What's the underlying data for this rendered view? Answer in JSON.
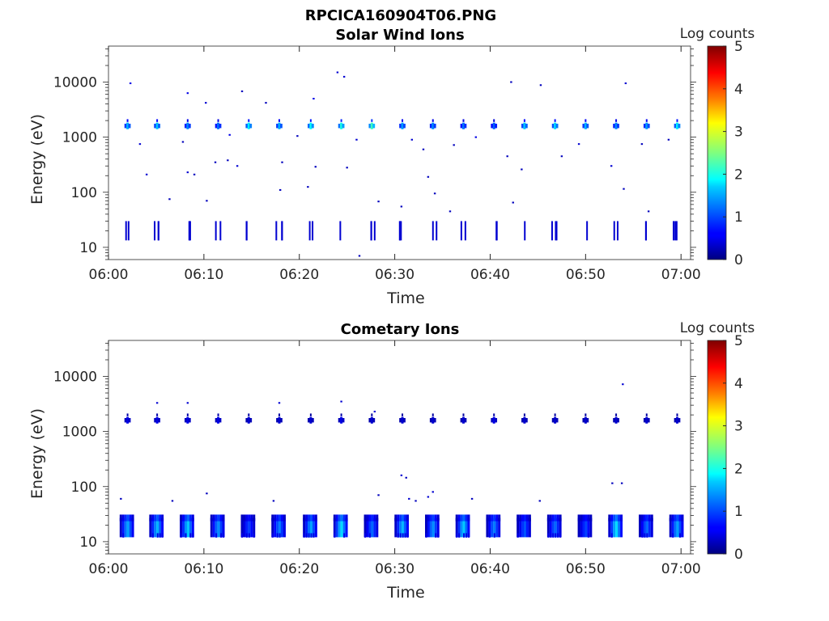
{
  "figure_title": "RPCICA160904T06.PNG",
  "colors": {
    "colormap": "jet",
    "axis": "#262626",
    "background": "#ffffff"
  },
  "chart_data": [
    {
      "type": "heatmap",
      "title": "Solar Wind Ions",
      "xlabel": "Time",
      "ylabel": "Energy (eV)",
      "x_ticks": [
        "06:00",
        "06:10",
        "06:20",
        "06:30",
        "06:40",
        "06:50",
        "07:00"
      ],
      "x_range_minutes": [
        0,
        61
      ],
      "y_ticks": [
        10,
        100,
        1000,
        10000
      ],
      "y_tick_labels": [
        "10",
        "100",
        "1000",
        "10000"
      ],
      "ylim": [
        6,
        45000
      ],
      "y_scale": "log",
      "colorbar": {
        "title": "Log counts",
        "ticks": [
          "0",
          "1",
          "2",
          "3",
          "4",
          "5"
        ],
        "range": [
          0,
          5
        ]
      },
      "scans_minutes": [
        2.0,
        5.1,
        8.3,
        11.5,
        14.7,
        17.9,
        21.2,
        24.4,
        27.6,
        30.8,
        34.0,
        37.2,
        40.4,
        43.6,
        46.8,
        50.0,
        53.2,
        56.4,
        59.6
      ],
      "peak_energy_eV": 1600,
      "peak_log_counts": [
        1.5,
        1.6,
        1.3,
        1.2,
        1.8,
        1.5,
        1.9,
        2.0,
        2.2,
        1.4,
        1.3,
        1.2,
        1.1,
        1.6,
        1.7,
        1.5,
        1.3,
        1.4,
        1.8
      ],
      "low_energy_hits": {
        "energy_eV": [
          13,
          30
        ],
        "log_counts": 0.4
      },
      "scatter_points": [
        {
          "t": 2.3,
          "e": 9500,
          "c": 0.5
        },
        {
          "t": 14.0,
          "e": 6800,
          "c": 0.3
        },
        {
          "t": 24.0,
          "e": 15000,
          "c": 0.4
        },
        {
          "t": 24.7,
          "e": 12500,
          "c": 0.4
        },
        {
          "t": 42.2,
          "e": 10000,
          "c": 0.3
        },
        {
          "t": 45.3,
          "e": 8800,
          "c": 0.3
        },
        {
          "t": 54.2,
          "e": 9500,
          "c": 0.4
        },
        {
          "t": 8.3,
          "e": 6300,
          "c": 0.5
        },
        {
          "t": 10.2,
          "e": 4200,
          "c": 0.4
        },
        {
          "t": 16.5,
          "e": 4200,
          "c": 0.3
        },
        {
          "t": 21.5,
          "e": 5000,
          "c": 0.5
        },
        {
          "t": 3.3,
          "e": 750,
          "c": 0.4
        },
        {
          "t": 7.8,
          "e": 820,
          "c": 0.3
        },
        {
          "t": 12.7,
          "e": 1100,
          "c": 0.5
        },
        {
          "t": 19.8,
          "e": 1050,
          "c": 0.3
        },
        {
          "t": 26.0,
          "e": 900,
          "c": 0.4
        },
        {
          "t": 31.8,
          "e": 900,
          "c": 0.4
        },
        {
          "t": 33.0,
          "e": 600,
          "c": 0.3
        },
        {
          "t": 36.2,
          "e": 720,
          "c": 0.3
        },
        {
          "t": 38.5,
          "e": 1000,
          "c": 0.5
        },
        {
          "t": 41.8,
          "e": 450,
          "c": 0.3
        },
        {
          "t": 47.5,
          "e": 450,
          "c": 0.3
        },
        {
          "t": 49.3,
          "e": 750,
          "c": 0.4
        },
        {
          "t": 55.9,
          "e": 750,
          "c": 0.3
        },
        {
          "t": 58.7,
          "e": 900,
          "c": 0.3
        },
        {
          "t": 4.0,
          "e": 210,
          "c": 0.4
        },
        {
          "t": 8.3,
          "e": 230,
          "c": 0.4
        },
        {
          "t": 9.0,
          "e": 210,
          "c": 0.3
        },
        {
          "t": 11.2,
          "e": 350,
          "c": 0.3
        },
        {
          "t": 12.5,
          "e": 380,
          "c": 0.3
        },
        {
          "t": 13.5,
          "e": 300,
          "c": 0.4
        },
        {
          "t": 18.2,
          "e": 350,
          "c": 0.3
        },
        {
          "t": 21.7,
          "e": 290,
          "c": 0.3
        },
        {
          "t": 25.0,
          "e": 280,
          "c": 0.3
        },
        {
          "t": 33.5,
          "e": 190,
          "c": 0.3
        },
        {
          "t": 43.3,
          "e": 260,
          "c": 0.3
        },
        {
          "t": 52.7,
          "e": 300,
          "c": 0.4
        },
        {
          "t": 6.4,
          "e": 75,
          "c": 0.3
        },
        {
          "t": 10.3,
          "e": 70,
          "c": 0.3
        },
        {
          "t": 18.0,
          "e": 110,
          "c": 0.3
        },
        {
          "t": 20.9,
          "e": 125,
          "c": 0.3
        },
        {
          "t": 28.3,
          "e": 68,
          "c": 0.3
        },
        {
          "t": 30.7,
          "e": 55,
          "c": 0.3
        },
        {
          "t": 34.2,
          "e": 95,
          "c": 0.3
        },
        {
          "t": 35.8,
          "e": 45,
          "c": 0.3
        },
        {
          "t": 42.4,
          "e": 65,
          "c": 0.3
        },
        {
          "t": 54.0,
          "e": 115,
          "c": 0.3
        },
        {
          "t": 56.6,
          "e": 45,
          "c": 0.3
        },
        {
          "t": 26.3,
          "e": 7,
          "c": 0.3
        }
      ]
    },
    {
      "type": "heatmap",
      "title": "Cometary Ions",
      "xlabel": "Time",
      "ylabel": "Energy (eV)",
      "x_ticks": [
        "06:00",
        "06:10",
        "06:20",
        "06:30",
        "06:40",
        "06:50",
        "07:00"
      ],
      "x_range_minutes": [
        0,
        61
      ],
      "y_ticks": [
        10,
        100,
        1000,
        10000
      ],
      "y_tick_labels": [
        "10",
        "100",
        "1000",
        "10000"
      ],
      "ylim": [
        6,
        45000
      ],
      "y_scale": "log",
      "colorbar": {
        "title": "Log counts",
        "ticks": [
          "0",
          "1",
          "2",
          "3",
          "4",
          "5"
        ],
        "range": [
          0,
          5
        ]
      },
      "scans_minutes": [
        2.0,
        5.1,
        8.3,
        11.5,
        14.7,
        17.9,
        21.2,
        24.4,
        27.6,
        30.8,
        34.0,
        37.2,
        40.4,
        43.6,
        46.8,
        50.0,
        53.2,
        56.4,
        59.6
      ],
      "peak_energy_eV": 1600,
      "peak_log_counts": [
        0.5,
        0.5,
        0.5,
        0.5,
        0.4,
        0.4,
        0.4,
        0.5,
        0.4,
        0.4,
        0.4,
        0.4,
        0.5,
        0.4,
        0.4,
        0.4,
        0.4,
        0.4,
        0.4
      ],
      "low_energy_band": {
        "energy_eV": [
          14,
          30
        ],
        "peak_log_counts": [
          1.5,
          1.6,
          1.7,
          1.4,
          1.0,
          1.3,
          1.5,
          1.8,
          1.2,
          1.6,
          1.4,
          1.7,
          1.3,
          1.1,
          1.2,
          1.0,
          1.8,
          1.2,
          1.5
        ]
      },
      "scatter_points": [
        {
          "t": 1.3,
          "e": 60,
          "c": 0.3
        },
        {
          "t": 5.1,
          "e": 3300,
          "c": 0.4
        },
        {
          "t": 8.3,
          "e": 3300,
          "c": 0.4
        },
        {
          "t": 6.7,
          "e": 55,
          "c": 0.3
        },
        {
          "t": 10.3,
          "e": 75,
          "c": 0.3
        },
        {
          "t": 17.9,
          "e": 3300,
          "c": 0.4
        },
        {
          "t": 24.4,
          "e": 3500,
          "c": 0.4
        },
        {
          "t": 27.9,
          "e": 2300,
          "c": 0.4
        },
        {
          "t": 28.3,
          "e": 70,
          "c": 0.3
        },
        {
          "t": 30.7,
          "e": 160,
          "c": 0.4
        },
        {
          "t": 31.2,
          "e": 145,
          "c": 0.3
        },
        {
          "t": 31.5,
          "e": 60,
          "c": 0.4
        },
        {
          "t": 32.2,
          "e": 55,
          "c": 0.3
        },
        {
          "t": 33.5,
          "e": 65,
          "c": 0.4
        },
        {
          "t": 34.0,
          "e": 80,
          "c": 0.4
        },
        {
          "t": 38.1,
          "e": 60,
          "c": 0.3
        },
        {
          "t": 45.2,
          "e": 55,
          "c": 0.3
        },
        {
          "t": 52.8,
          "e": 115,
          "c": 0.3
        },
        {
          "t": 53.8,
          "e": 115,
          "c": 0.3
        },
        {
          "t": 53.9,
          "e": 7200,
          "c": 0.4
        },
        {
          "t": 17.3,
          "e": 55,
          "c": 0.3
        }
      ]
    }
  ]
}
